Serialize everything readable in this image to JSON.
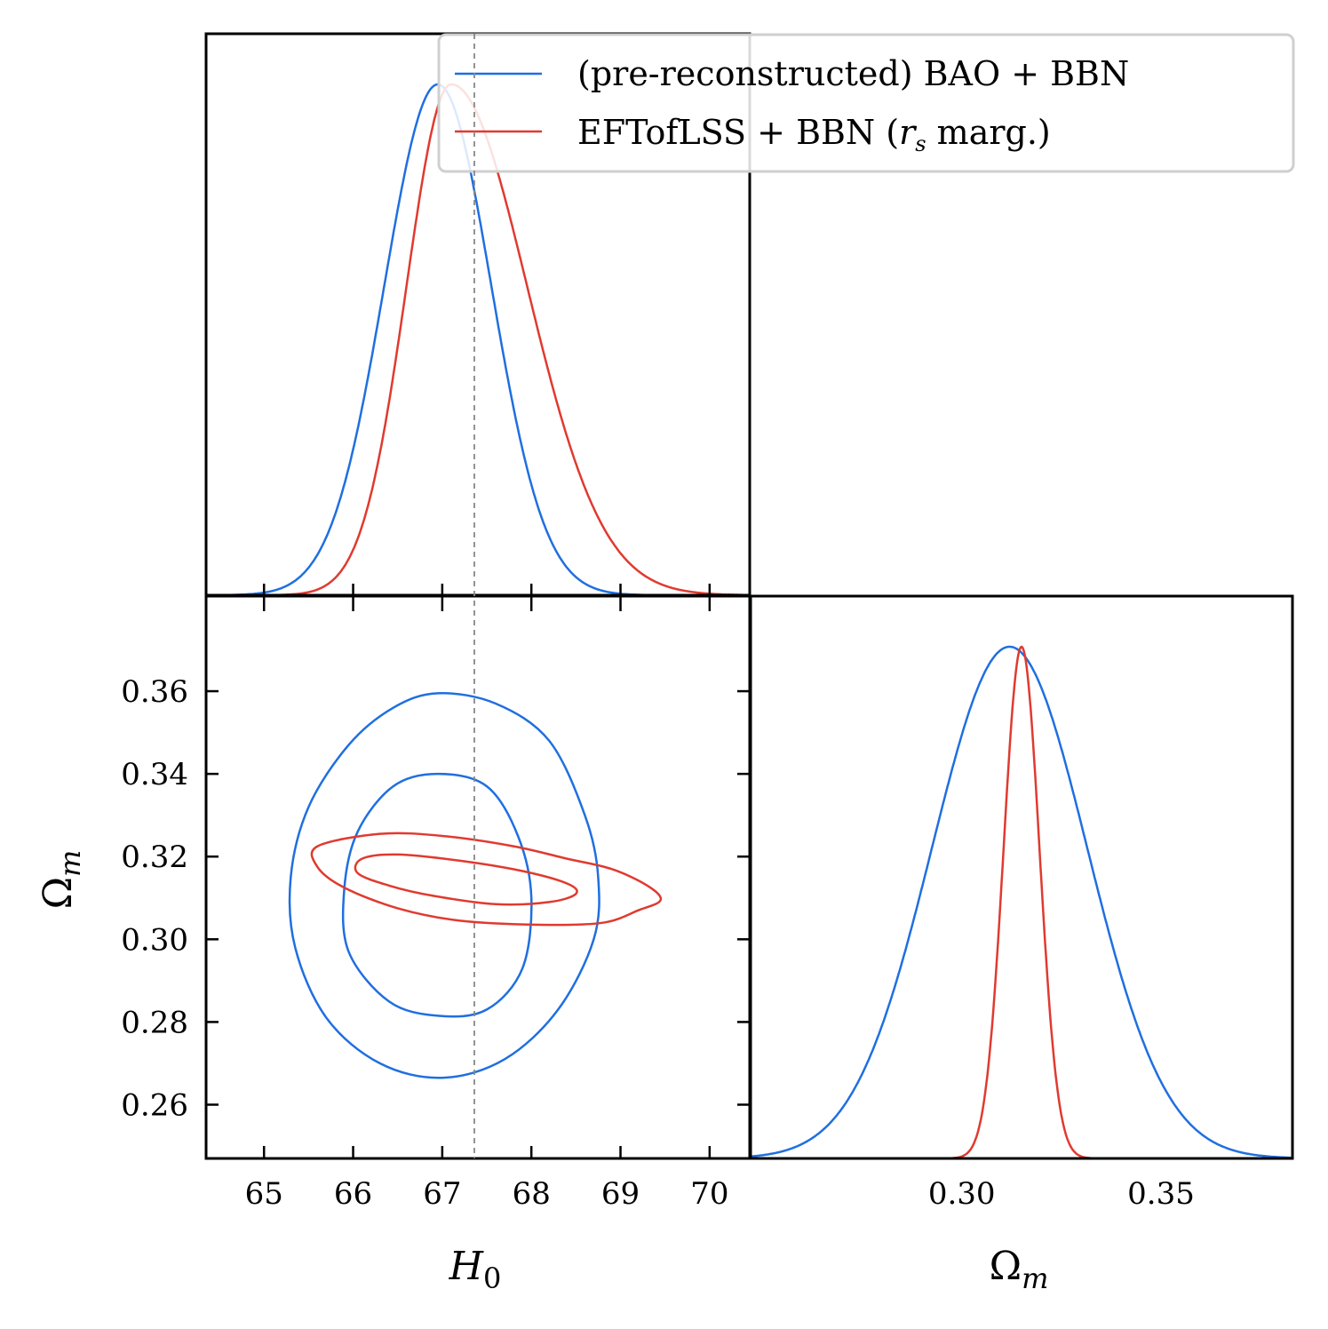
{
  "chart_data": {
    "type": "corner",
    "parameters": [
      "H0",
      "Omega_m"
    ],
    "axis_labels": {
      "H0": "H0",
      "Omega_m": "Ωm"
    },
    "xlim_H0": [
      64.35,
      70.45
    ],
    "ylim_Omega_m": [
      0.247,
      0.383
    ],
    "xlim_Omega_m_1d": [
      0.247,
      0.383
    ],
    "ticks": {
      "H0": [
        "65",
        "66",
        "67",
        "68",
        "69",
        "70"
      ],
      "Omega_m_2d": [
        "0.26",
        "0.28",
        "0.30",
        "0.32",
        "0.34",
        "0.36"
      ],
      "Omega_m_1d": [
        "0.30",
        "0.35"
      ]
    },
    "reference_line": {
      "H0": 67.36
    },
    "colors": {
      "bao": "#1f6fe0",
      "eft": "#e03a2f",
      "ref": "#888888"
    },
    "legend": {
      "location": "upper right",
      "entries": [
        {
          "label": "(pre-reconstructed) BAO + BBN",
          "color": "#1f6fe0"
        },
        {
          "label_main": "EFTofLSS + BBN (",
          "label_sym": "r",
          "label_sub": "s",
          "label_tail": " marg.)",
          "color": "#e03a2f"
        }
      ]
    },
    "series": [
      {
        "name": "(pre-reconstructed) BAO + BBN",
        "color": "#1f6fe0",
        "H0_1d": {
          "mean": 66.95,
          "sigma_left": 0.6,
          "sigma_right": 0.6
        },
        "Omega_m_1d": {
          "mean": 0.312,
          "sigma": 0.0195
        },
        "contours": [
          {
            "level": "68%",
            "points": [
              [
                66.95,
                0.34
              ],
              [
                67.5,
                0.337
              ],
              [
                67.85,
                0.325
              ],
              [
                68.0,
                0.31
              ],
              [
                67.9,
                0.293
              ],
              [
                67.5,
                0.283
              ],
              [
                66.95,
                0.2815
              ],
              [
                66.4,
                0.285
              ],
              [
                65.95,
                0.297
              ],
              [
                65.9,
                0.312
              ],
              [
                66.05,
                0.326
              ],
              [
                66.45,
                0.337
              ]
            ]
          },
          {
            "level": "95%",
            "points": [
              [
                66.95,
                0.3595
              ],
              [
                67.6,
                0.357
              ],
              [
                68.2,
                0.348
              ],
              [
                68.6,
                0.33
              ],
              [
                68.75,
                0.315
              ],
              [
                68.7,
                0.3
              ],
              [
                68.3,
                0.283
              ],
              [
                67.7,
                0.271
              ],
              [
                67.0,
                0.2665
              ],
              [
                66.3,
                0.27
              ],
              [
                65.7,
                0.281
              ],
              [
                65.35,
                0.298
              ],
              [
                65.3,
                0.315
              ],
              [
                65.5,
                0.332
              ],
              [
                65.95,
                0.347
              ],
              [
                66.45,
                0.356
              ]
            ]
          }
        ]
      },
      {
        "name": "EFTofLSS + BBN (rs marg.)",
        "color": "#e03a2f",
        "H0_1d": {
          "mean": 67.1,
          "sigma_left": 0.5,
          "sigma_right": 0.85
        },
        "Omega_m_1d": {
          "mean": 0.315,
          "sigma": 0.0045
        },
        "contours": [
          {
            "level": "68%",
            "points": [
              [
                66.1,
                0.3195
              ],
              [
                66.5,
                0.3205
              ],
              [
                67.2,
                0.319
              ],
              [
                67.9,
                0.3165
              ],
              [
                68.4,
                0.3135
              ],
              [
                68.5,
                0.311
              ],
              [
                68.2,
                0.309
              ],
              [
                67.6,
                0.3085
              ],
              [
                66.9,
                0.3105
              ],
              [
                66.4,
                0.313
              ],
              [
                66.05,
                0.316
              ]
            ]
          },
          {
            "level": "95%",
            "points": [
              [
                65.6,
                0.3225
              ],
              [
                66.3,
                0.3255
              ],
              [
                67.0,
                0.325
              ],
              [
                67.8,
                0.3225
              ],
              [
                68.4,
                0.3195
              ],
              [
                68.9,
                0.317
              ],
              [
                69.3,
                0.313
              ],
              [
                69.45,
                0.3095
              ],
              [
                69.2,
                0.307
              ],
              [
                68.8,
                0.304
              ],
              [
                68.1,
                0.3035
              ],
              [
                67.2,
                0.3045
              ],
              [
                66.5,
                0.3075
              ],
              [
                65.9,
                0.3125
              ],
              [
                65.6,
                0.3175
              ]
            ]
          }
        ]
      }
    ]
  }
}
